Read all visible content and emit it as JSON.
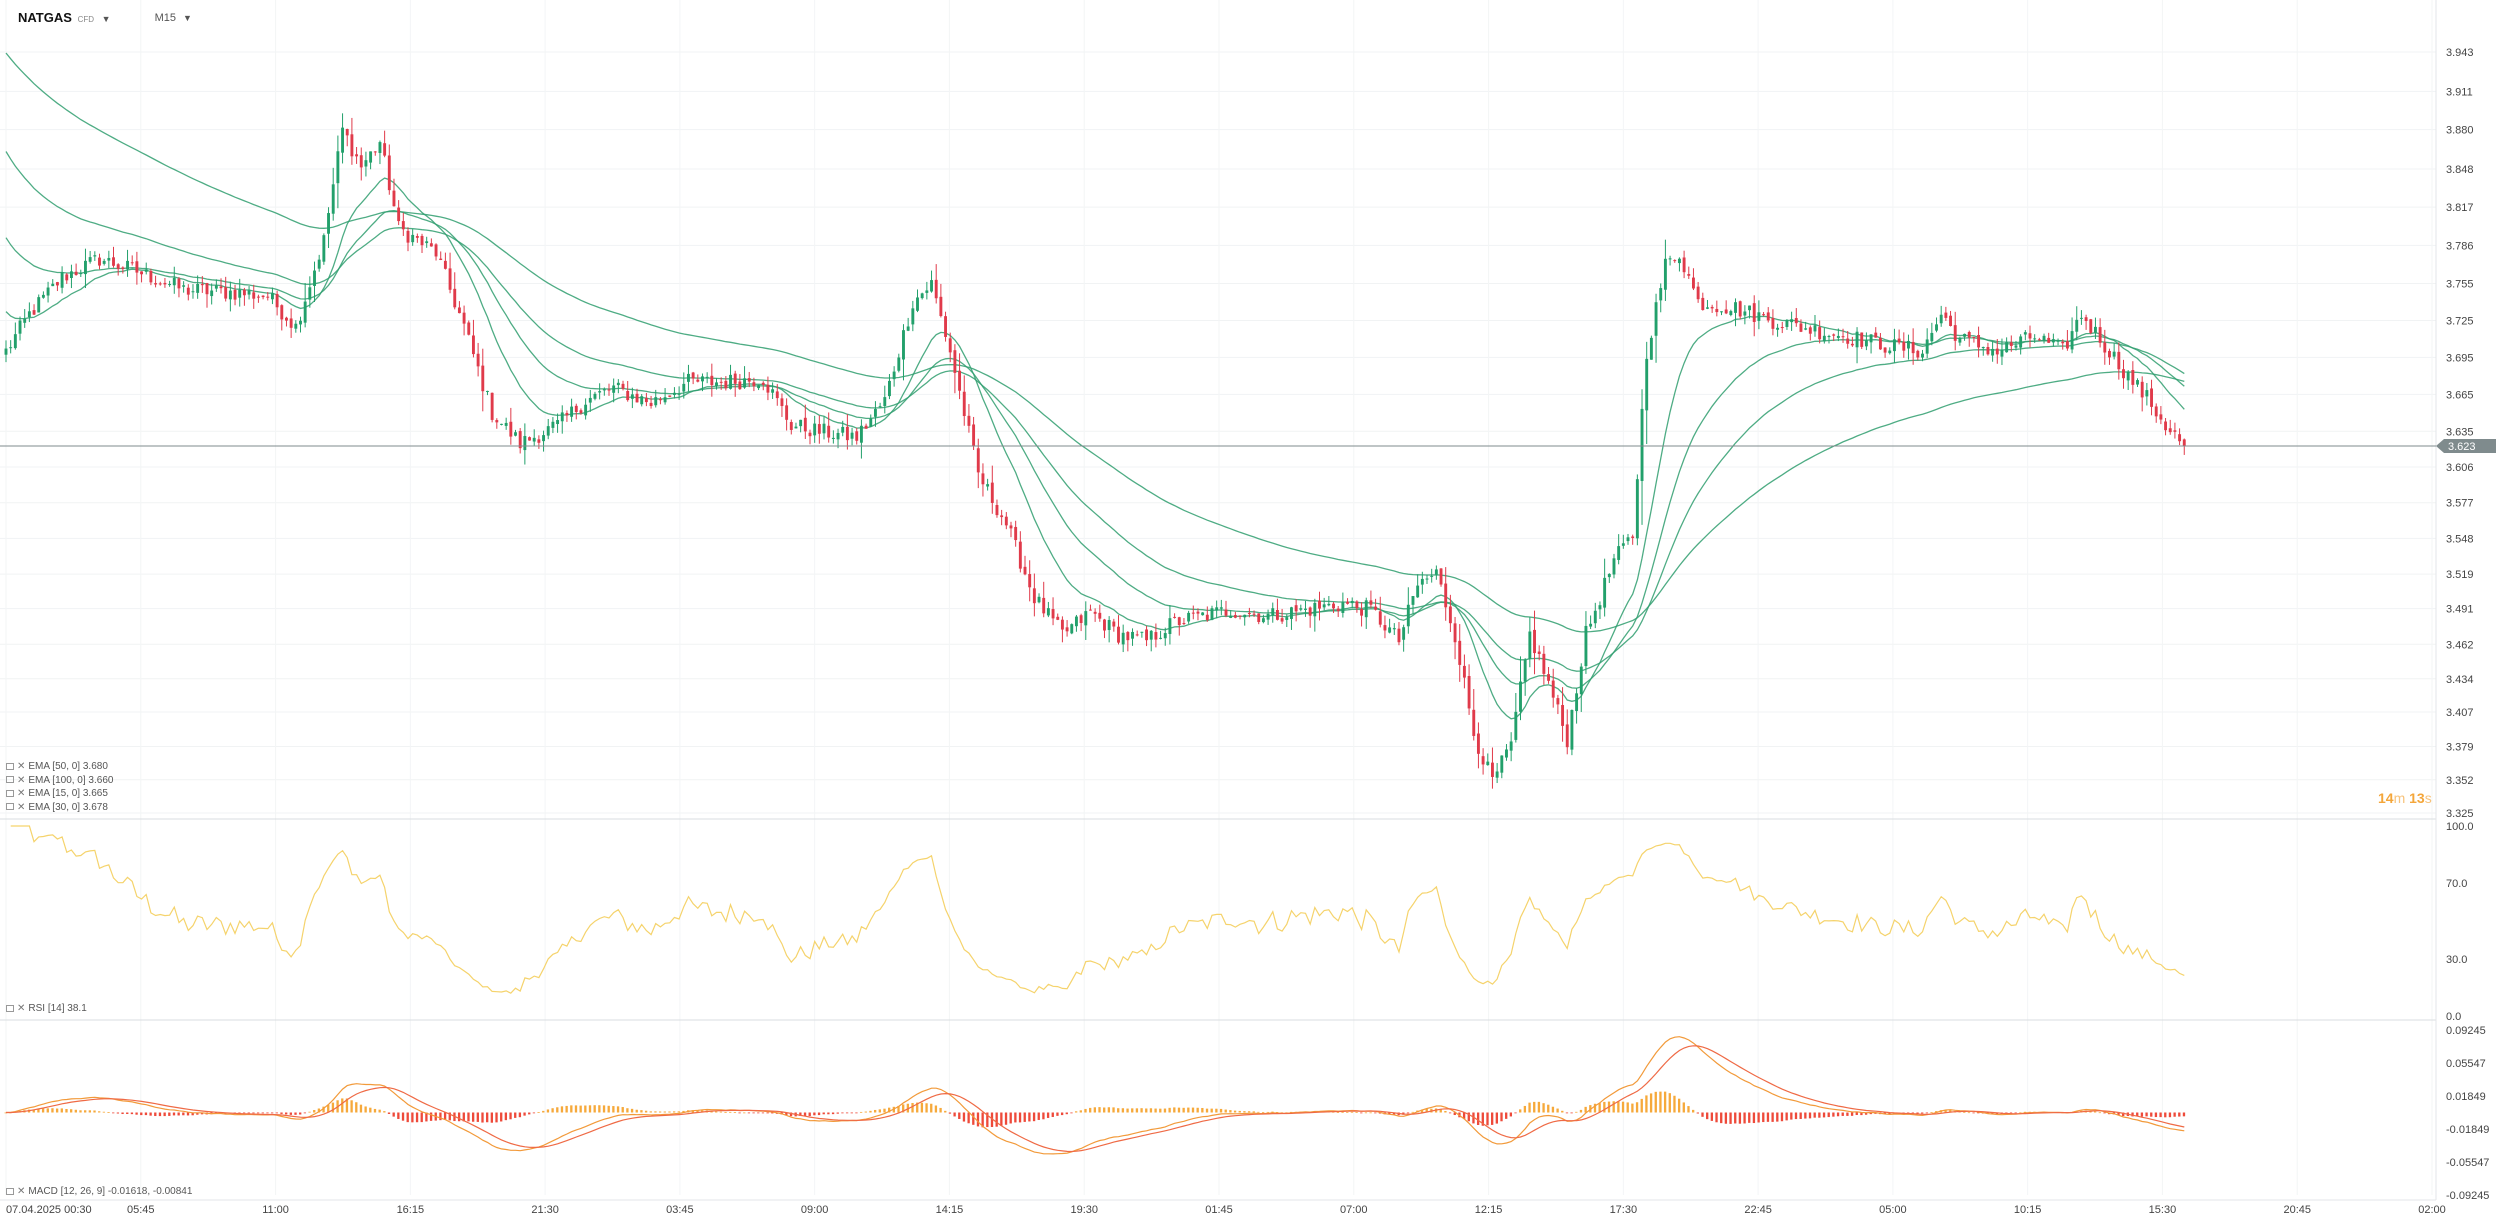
{
  "header": {
    "symbol": "NATGAS",
    "symbol_sub": "CFD",
    "timeframe": "M15"
  },
  "price_panel": {
    "current_price": "3.623",
    "countdown": {
      "min": "14",
      "min_unit": "m",
      "sec": "13",
      "sec_unit": "s"
    },
    "y_ticks": [
      "3.943",
      "3.911",
      "3.880",
      "3.848",
      "3.817",
      "3.786",
      "3.755",
      "3.725",
      "3.695",
      "3.665",
      "3.635",
      "3.606",
      "3.577",
      "3.548",
      "3.519",
      "3.491",
      "3.462",
      "3.434",
      "3.407",
      "3.379",
      "3.352",
      "3.325"
    ],
    "legend": [
      {
        "text": "EMA [50, 0] 3.680"
      },
      {
        "text": "EMA [100, 0] 3.660"
      },
      {
        "text": "EMA [15, 0] 3.665"
      },
      {
        "text": "EMA [30, 0] 3.678"
      }
    ]
  },
  "rsi_panel": {
    "legend": "RSI [14] 38.1",
    "y_ticks": [
      "100.0",
      "70.0",
      "30.0",
      "0.0"
    ]
  },
  "macd_panel": {
    "legend": "MACD [12, 26, 9] -0.01618, -0.00841",
    "y_ticks": [
      "0.09245",
      "0.05547",
      "0.01849",
      "-0.01849",
      "-0.05547",
      "-0.09245"
    ]
  },
  "x_axis": {
    "labels": [
      "07.04.2025  00:30",
      "05:45",
      "11:00",
      "16:15",
      "21:30",
      "03:45",
      "09:00",
      "14:15",
      "19:30",
      "01:45",
      "07:00",
      "12:15",
      "17:30",
      "22:45",
      "05:00",
      "10:15",
      "15:30",
      "20:45",
      "02:00"
    ]
  },
  "colors": {
    "bull": "#22a06b",
    "bear": "#e03a4a",
    "ema": "#2f9e6e",
    "rsi": "#f5d36c",
    "macd_line": "#f29a3a",
    "signal_line": "#ef6a45",
    "hist_pos": "#f6a93b",
    "hist_neg": "#ee4a3a",
    "price_tag": "#7f8b8d"
  },
  "chart_data": {
    "type": "candlestick",
    "price_range": [
      3.325,
      3.943
    ],
    "rsi_range": [
      0,
      100
    ],
    "macd_range": [
      -0.09245,
      0.09245
    ],
    "anchors": [
      [
        0,
        3.7
      ],
      [
        5,
        3.73
      ],
      [
        12,
        3.76
      ],
      [
        20,
        3.775
      ],
      [
        28,
        3.765
      ],
      [
        38,
        3.75
      ],
      [
        48,
        3.748
      ],
      [
        56,
        3.745
      ],
      [
        62,
        3.72
      ],
      [
        68,
        3.79
      ],
      [
        72,
        3.88
      ],
      [
        76,
        3.85
      ],
      [
        80,
        3.87
      ],
      [
        84,
        3.8
      ],
      [
        92,
        3.78
      ],
      [
        98,
        3.72
      ],
      [
        104,
        3.65
      ],
      [
        110,
        3.625
      ],
      [
        118,
        3.64
      ],
      [
        124,
        3.66
      ],
      [
        130,
        3.67
      ],
      [
        138,
        3.658
      ],
      [
        146,
        3.675
      ],
      [
        154,
        3.675
      ],
      [
        162,
        3.678
      ],
      [
        168,
        3.64
      ],
      [
        174,
        3.635
      ],
      [
        182,
        3.63
      ],
      [
        188,
        3.66
      ],
      [
        194,
        3.74
      ],
      [
        198,
        3.755
      ],
      [
        202,
        3.7
      ],
      [
        208,
        3.6
      ],
      [
        214,
        3.56
      ],
      [
        220,
        3.5
      ],
      [
        226,
        3.47
      ],
      [
        232,
        3.488
      ],
      [
        238,
        3.47
      ],
      [
        244,
        3.465
      ],
      [
        250,
        3.48
      ],
      [
        256,
        3.485
      ],
      [
        262,
        3.49
      ],
      [
        270,
        3.485
      ],
      [
        278,
        3.49
      ],
      [
        286,
        3.495
      ],
      [
        292,
        3.49
      ],
      [
        298,
        3.465
      ],
      [
        302,
        3.51
      ],
      [
        306,
        3.52
      ],
      [
        310,
        3.47
      ],
      [
        314,
        3.39
      ],
      [
        318,
        3.35
      ],
      [
        322,
        3.38
      ],
      [
        326,
        3.47
      ],
      [
        330,
        3.43
      ],
      [
        334,
        3.385
      ],
      [
        338,
        3.47
      ],
      [
        344,
        3.53
      ],
      [
        348,
        3.55
      ],
      [
        351,
        3.7
      ],
      [
        355,
        3.77
      ],
      [
        358,
        3.78
      ],
      [
        362,
        3.74
      ],
      [
        370,
        3.735
      ],
      [
        378,
        3.725
      ],
      [
        386,
        3.718
      ],
      [
        394,
        3.712
      ],
      [
        402,
        3.705
      ],
      [
        410,
        3.7
      ],
      [
        414,
        3.73
      ],
      [
        418,
        3.71
      ],
      [
        426,
        3.7
      ],
      [
        434,
        3.712
      ],
      [
        440,
        3.7
      ],
      [
        444,
        3.73
      ],
      [
        450,
        3.7
      ],
      [
        454,
        3.68
      ],
      [
        458,
        3.662
      ],
      [
        462,
        3.64
      ],
      [
        466,
        3.623
      ]
    ],
    "ema_periods": [
      15,
      30,
      50,
      100
    ],
    "ema_start_offsets": [
      0.03,
      0.09,
      0.16,
      0.24
    ],
    "rsi_period": 14,
    "macd_params": [
      12,
      26,
      9
    ],
    "candle_count": 467,
    "last_bar_index": 466,
    "total_slots": 520
  }
}
